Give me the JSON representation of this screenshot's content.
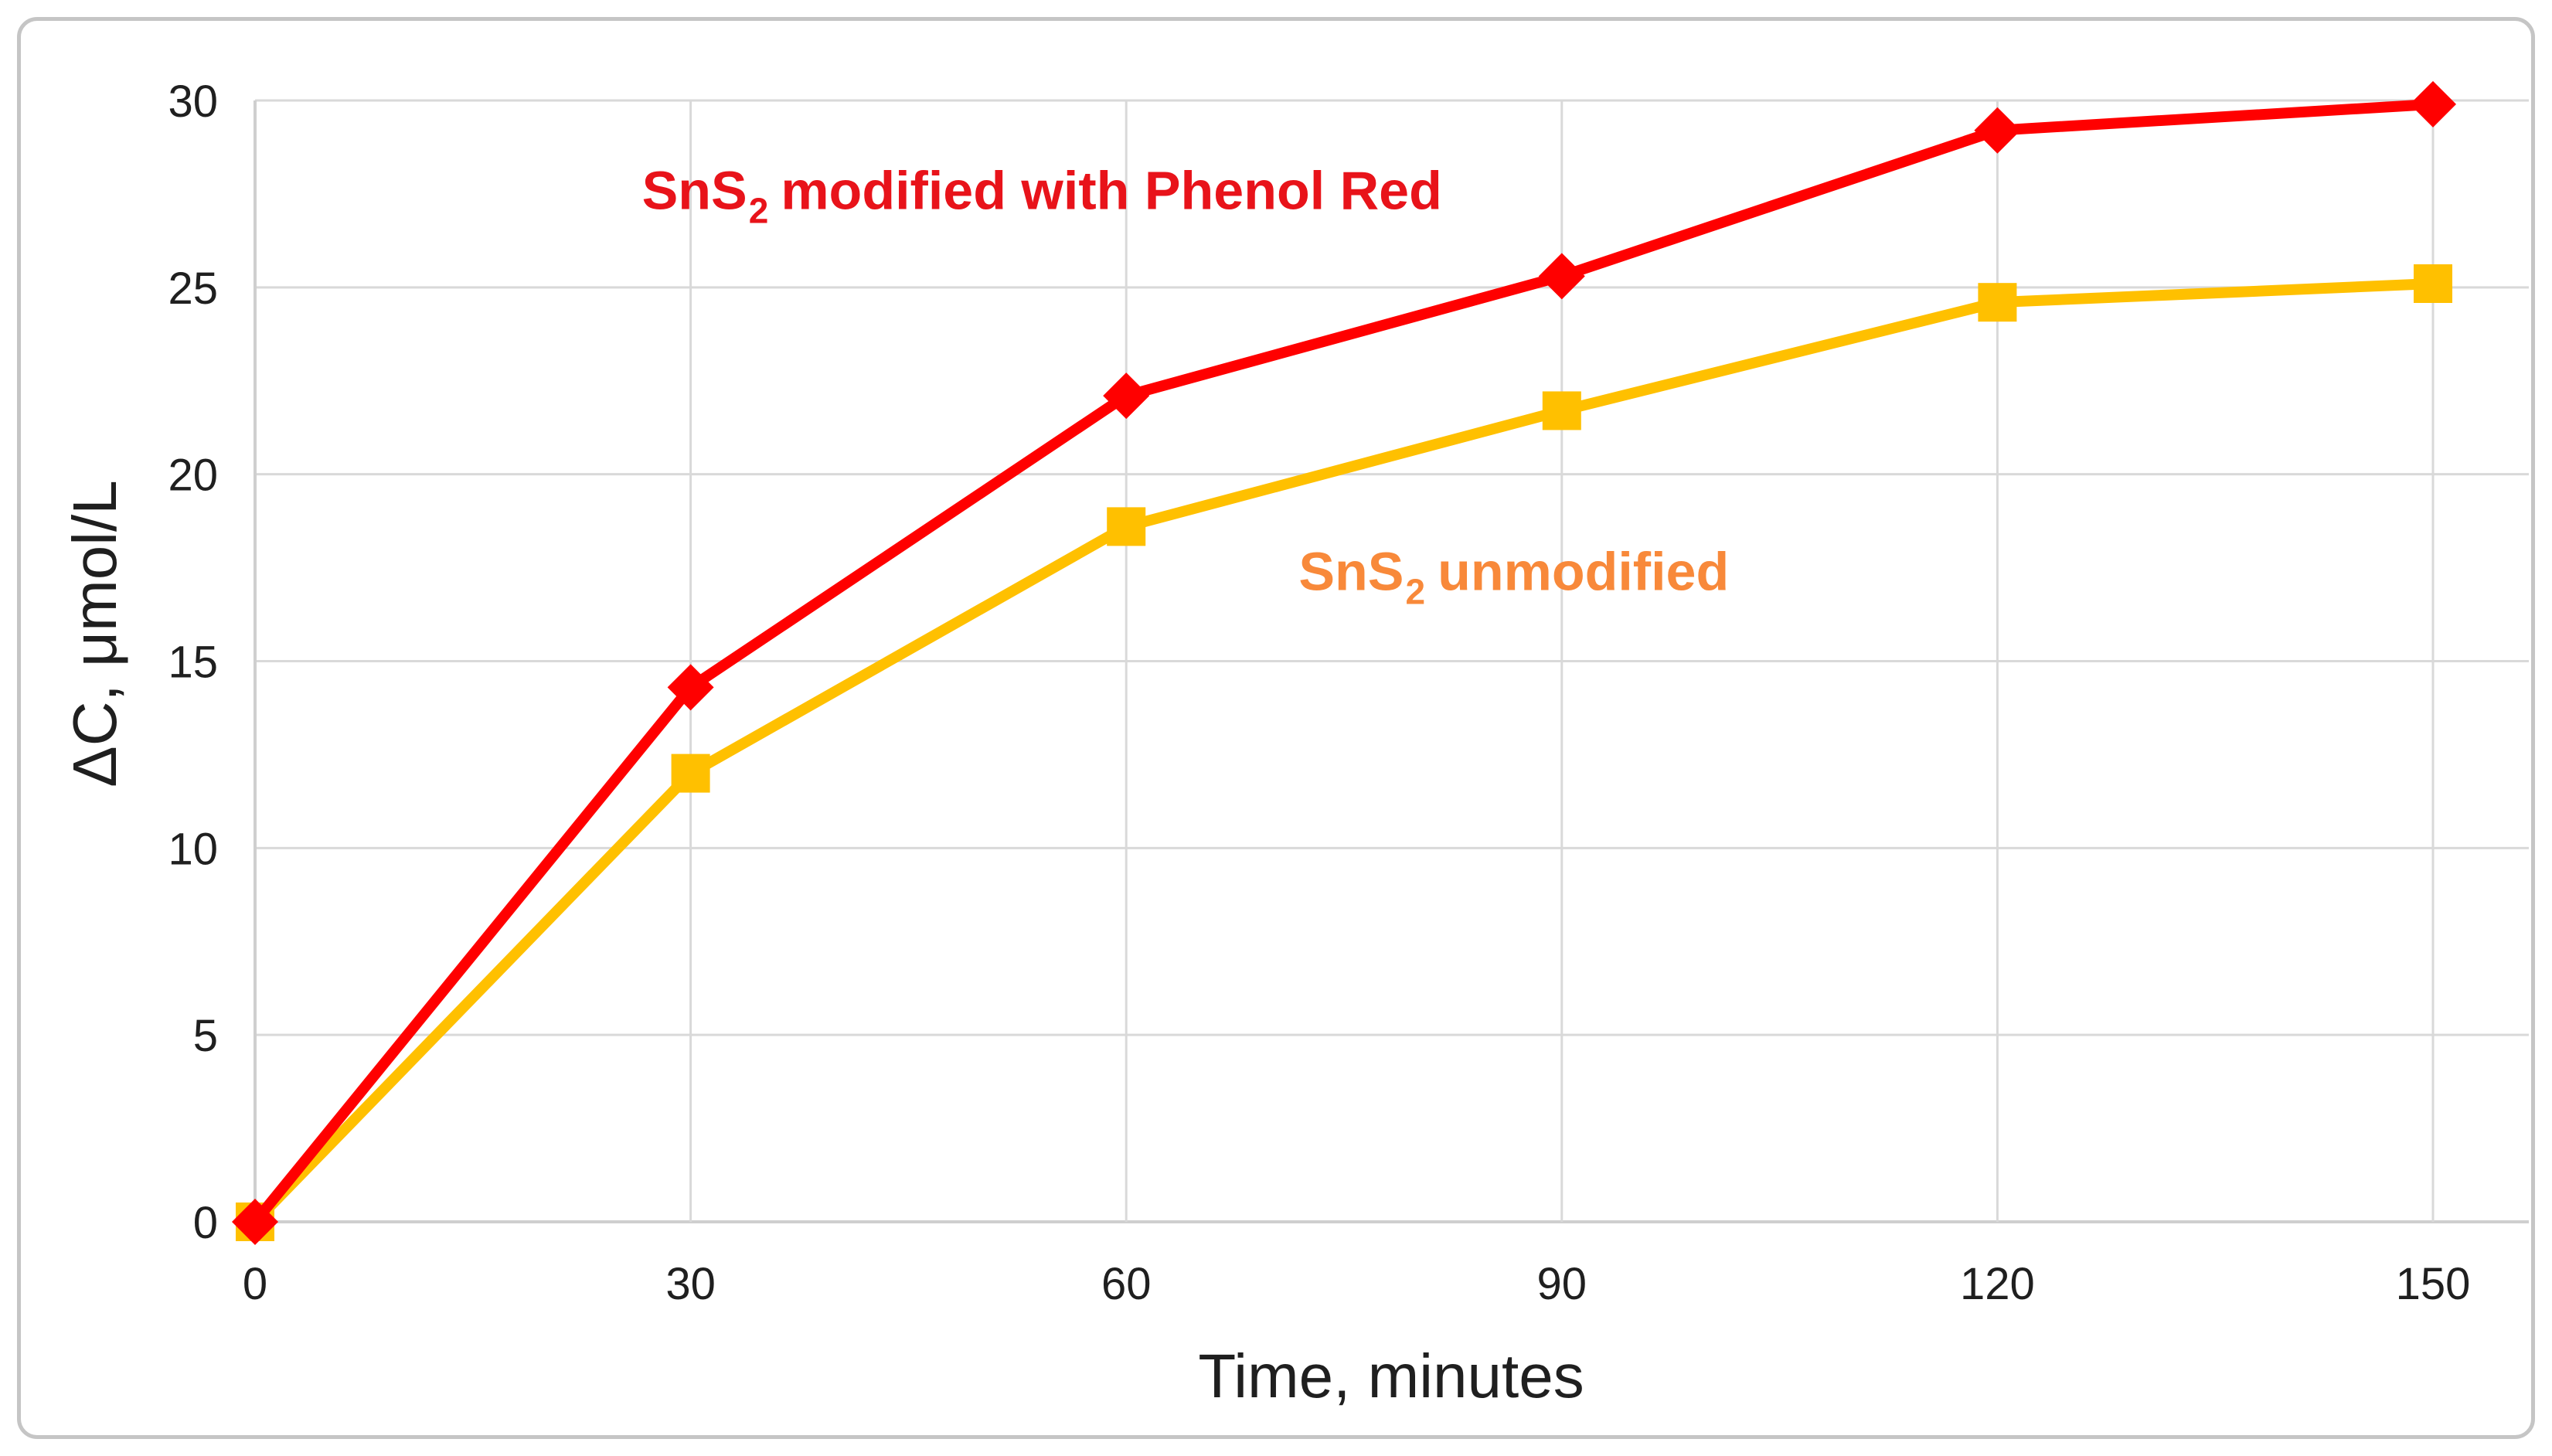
{
  "figure": {
    "background": "#ffffff",
    "border_color": "#c5c5c5"
  },
  "chart_data": {
    "type": "line",
    "title": "",
    "xlabel": "Time, minutes",
    "ylabel": "ΔC, μmol/L",
    "x": [
      0,
      30,
      60,
      90,
      120,
      150
    ],
    "x_tick_labels": [
      "0",
      "30",
      "60",
      "90",
      "120",
      "150"
    ],
    "y_tick_labels": [
      "0",
      "5",
      "10",
      "15",
      "20",
      "25",
      "30"
    ],
    "y_ticks": [
      0,
      5,
      10,
      15,
      20,
      25,
      30
    ],
    "xlim": [
      0,
      156.6
    ],
    "ylim": [
      0,
      30
    ],
    "grid": true,
    "grid_color": "#d9d9d9",
    "axis_line_color": "#cfcfcf",
    "tick_text_color": "#1f1f1f",
    "legend_position": "inline-annotations",
    "series": [
      {
        "name": "SnS2 unmodified",
        "label_prefix": "SnS",
        "label_sub": "2",
        "label_rest": "unmodified",
        "color": "#ffc000",
        "label_color": "#f8893a",
        "marker": "square",
        "marker_size": 50,
        "line_width": 14,
        "values": [
          0,
          12.0,
          18.6,
          21.7,
          24.6,
          25.1
        ],
        "label_anchor": {
          "x": 86.7,
          "y": 16.9
        }
      },
      {
        "name": "SnS2 modified with Phenol Red",
        "label_prefix": "SnS",
        "label_sub": "2",
        "label_rest": "modified with Phenol Red",
        "color": "#ff0000",
        "label_color": "#e8131a",
        "marker": "diamond",
        "marker_size": 60,
        "line_width": 14,
        "values": [
          0,
          14.3,
          22.1,
          25.3,
          29.2,
          29.9
        ],
        "label_anchor": {
          "x": 54.2,
          "y": 27.1
        }
      }
    ]
  }
}
